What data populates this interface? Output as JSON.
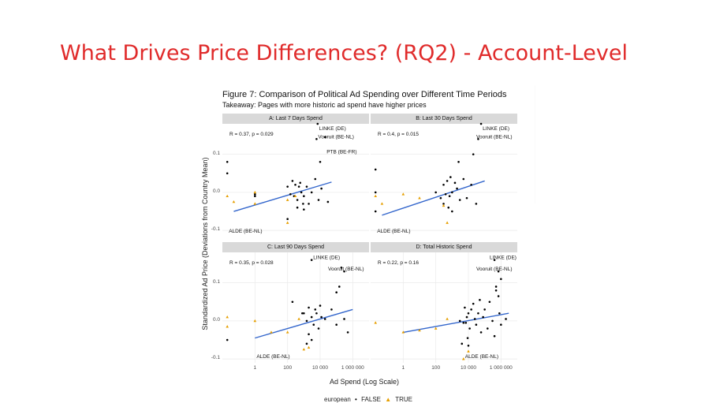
{
  "slide": {
    "title": "What Drives Price Differences? (RQ2) - Account-Level"
  },
  "figure": {
    "title": "Figure 7: Comparison of Political Ad Spending over Different Time Periods",
    "subtitle": "Takeaway: Pages with more historic ad spend have higher prices",
    "ylabel": "Standardized Ad Price (Deviations from Country Mean)",
    "xlabel": "Ad Spend (Log Scale)",
    "legend": {
      "title": "european",
      "false_label": "FALSE",
      "true_label": "TRUE"
    }
  },
  "colors": {
    "title_red": "#e02b2b",
    "false_points": "#000000",
    "true_points": "#e69f00",
    "fit_line": "#3366cc",
    "strip": "#d9d9d9",
    "grid": "#ececec"
  },
  "chart_data": [
    {
      "type": "scatter",
      "panel": "A",
      "title": "A: Last 7 Days Spend",
      "stat": "R = 0.37, p = 0.029",
      "x_scale": "log10",
      "xlim": [
        0.01,
        10000000
      ],
      "ylim": [
        -0.11,
        0.18
      ],
      "y_ticks": [
        -0.1,
        0.0,
        0.1
      ],
      "y_tick_labels": [
        "-0.1",
        "0.0",
        "0.1"
      ],
      "x_ticks": [],
      "x_tick_labels": [],
      "fit": [
        [
          0.05,
          -0.05
        ],
        [
          50000,
          0.027
        ]
      ],
      "series": [
        {
          "name": "FALSE",
          "points": [
            [
              0.02,
              0.08
            ],
            [
              0.02,
              0.05
            ],
            [
              1,
              -0.005
            ],
            [
              1,
              -0.01
            ],
            [
              200,
              0.03
            ],
            [
              300,
              0.02
            ],
            [
              500,
              0.015
            ],
            [
              150,
              -0.005
            ],
            [
              250,
              -0.01
            ],
            [
              400,
              -0.02
            ],
            [
              700,
              0.0
            ],
            [
              1000,
              -0.01
            ],
            [
              1500,
              0.015
            ],
            [
              2000,
              -0.03
            ],
            [
              5000,
              0.035
            ],
            [
              8000,
              -0.02
            ],
            [
              12000,
              0.01
            ],
            [
              30000,
              -0.025
            ],
            [
              600,
              0.025
            ],
            [
              100,
              0.015
            ],
            [
              900,
              -0.03
            ],
            [
              3000,
              0.0
            ],
            [
              400,
              -0.04
            ],
            [
              1000,
              -0.045
            ],
            [
              10000,
              0.08
            ],
            [
              100,
              -0.07
            ],
            [
              20000,
              0.145
            ],
            [
              7000,
              0.18
            ],
            [
              6000,
              0.14
            ]
          ]
        },
        {
          "name": "TRUE",
          "points": [
            [
              0.02,
              -0.01
            ],
            [
              0.05,
              -0.025
            ],
            [
              1,
              -0.03
            ],
            [
              1,
              0.0
            ],
            [
              100,
              -0.02
            ],
            [
              100,
              -0.08
            ],
            [
              300,
              -0.01
            ]
          ]
        }
      ],
      "labels": [
        {
          "text": "LINKE (DE)",
          "x": 7000,
          "y": 0.18
        },
        {
          "text": "Vooruit (BE-NL)",
          "x": 6000,
          "y": 0.14
        },
        {
          "text": "PTB (BE-FR)",
          "x": 20000,
          "y": 0.1
        },
        {
          "text": "ALDE (BE-NL)",
          "x": 0.02,
          "y": -0.11
        }
      ]
    },
    {
      "type": "scatter",
      "panel": "B",
      "title": "B: Last 30 Days Spend",
      "stat": "R = 0.4, p = 0.015",
      "x_scale": "log10",
      "xlim": [
        0.01,
        10000000
      ],
      "ylim": [
        -0.11,
        0.18
      ],
      "y_ticks": [
        -0.1,
        0.0,
        0.1
      ],
      "y_tick_labels": [
        "",
        "",
        ""
      ],
      "x_ticks": [],
      "x_tick_labels": [],
      "fit": [
        [
          0.05,
          -0.06
        ],
        [
          100000,
          0.03
        ]
      ],
      "series": [
        {
          "name": "FALSE",
          "points": [
            [
              0.02,
              0.06
            ],
            [
              0.02,
              0.0
            ],
            [
              0.02,
              -0.05
            ],
            [
              100,
              0.0
            ],
            [
              300,
              0.02
            ],
            [
              500,
              0.03
            ],
            [
              700,
              -0.01
            ],
            [
              1000,
              0.0
            ],
            [
              1500,
              0.025
            ],
            [
              2000,
              0.01
            ],
            [
              3000,
              -0.02
            ],
            [
              5000,
              0.035
            ],
            [
              8000,
              -0.015
            ],
            [
              15000,
              0.02
            ],
            [
              30000,
              -0.03
            ],
            [
              200,
              -0.015
            ],
            [
              400,
              -0.005
            ],
            [
              600,
              -0.04
            ],
            [
              1000,
              -0.05
            ],
            [
              2500,
              0.08
            ],
            [
              300,
              -0.03
            ],
            [
              800,
              0.04
            ],
            [
              60000,
              0.18
            ],
            [
              40000,
              0.14
            ],
            [
              20000,
              0.1
            ]
          ]
        },
        {
          "name": "TRUE",
          "points": [
            [
              0.02,
              -0.01
            ],
            [
              0.05,
              -0.03
            ],
            [
              1,
              -0.005
            ],
            [
              10,
              -0.015
            ],
            [
              300,
              -0.035
            ],
            [
              500,
              -0.08
            ]
          ]
        }
      ],
      "labels": [
        {
          "text": "LINKE (DE)",
          "x": 60000,
          "y": 0.18
        },
        {
          "text": "Vooruit (BE-NL)",
          "x": 40000,
          "y": 0.14
        },
        {
          "text": "ALDE (BE-NL)",
          "x": 0.02,
          "y": -0.11
        }
      ]
    },
    {
      "type": "scatter",
      "panel": "C",
      "title": "C: Last 90 Days Spend",
      "stat": "R = 0.35, p = 0.028",
      "x_scale": "log10",
      "xlim": [
        0.01,
        10000000
      ],
      "ylim": [
        -0.11,
        0.18
      ],
      "y_ticks": [
        -0.1,
        0.0,
        0.1
      ],
      "y_tick_labels": [
        "-0.1",
        "0.0",
        "0.1"
      ],
      "x_ticks": [
        1,
        100,
        10000,
        1000000
      ],
      "x_tick_labels": [
        "1",
        "100",
        "10 000",
        "1 000 000"
      ],
      "fit": [
        [
          1,
          -0.045
        ],
        [
          1000000,
          0.03
        ]
      ],
      "series": [
        {
          "name": "FALSE",
          "points": [
            [
              0.02,
              -0.05
            ],
            [
              200,
              0.05
            ],
            [
              1000,
              0.02
            ],
            [
              1500,
              0.0
            ],
            [
              2000,
              0.035
            ],
            [
              3000,
              0.01
            ],
            [
              4000,
              -0.01
            ],
            [
              5000,
              0.03
            ],
            [
              6000,
              0.02
            ],
            [
              8000,
              -0.02
            ],
            [
              12000,
              0.01
            ],
            [
              20000,
              0.005
            ],
            [
              50000,
              0.03
            ],
            [
              100000,
              -0.01
            ],
            [
              300000,
              0.005
            ],
            [
              500000,
              -0.03
            ],
            [
              2000,
              -0.035
            ],
            [
              3000,
              -0.05
            ],
            [
              1500,
              -0.06
            ],
            [
              800,
              0.02
            ],
            [
              10000,
              0.04
            ],
            [
              150000,
              0.09
            ],
            [
              100000,
              0.075
            ],
            [
              300000,
              0.13
            ],
            [
              200000,
              0.14
            ],
            [
              3000,
              0.16
            ]
          ]
        },
        {
          "name": "TRUE",
          "points": [
            [
              0.02,
              0.01
            ],
            [
              0.02,
              -0.015
            ],
            [
              1,
              0.0
            ],
            [
              10,
              -0.03
            ],
            [
              100,
              -0.03
            ],
            [
              500,
              0.005
            ],
            [
              1000,
              -0.075
            ],
            [
              2000,
              -0.07
            ]
          ]
        }
      ],
      "labels": [
        {
          "text": "LINKE (DE)",
          "x": 3000,
          "y": 0.16
        },
        {
          "text": "Vooruit (BE-NL)",
          "x": 200000,
          "y": 0.13
        },
        {
          "text": "ALDE (BE-NL)",
          "x": 1,
          "y": -0.1
        }
      ]
    },
    {
      "type": "scatter",
      "panel": "D",
      "title": "D: Total Historic Spend",
      "stat": "R = 0.22, p = 0.16",
      "x_scale": "log10",
      "xlim": [
        0.01,
        10000000
      ],
      "ylim": [
        -0.11,
        0.18
      ],
      "y_ticks": [
        -0.1,
        0.0,
        0.1
      ],
      "y_tick_labels": [
        "",
        "",
        ""
      ],
      "x_ticks": [
        1,
        100,
        10000,
        1000000
      ],
      "x_tick_labels": [
        "1",
        "100",
        "10 000",
        "1 000 000"
      ],
      "fit": [
        [
          1,
          -0.03
        ],
        [
          3000000,
          0.02
        ]
      ],
      "series": [
        {
          "name": "FALSE",
          "points": [
            [
              3000,
              0.0
            ],
            [
              5000,
              -0.005
            ],
            [
              8000,
              0.01
            ],
            [
              10000,
              0.02
            ],
            [
              12000,
              -0.02
            ],
            [
              15000,
              0.03
            ],
            [
              20000,
              0.045
            ],
            [
              25000,
              0.005
            ],
            [
              30000,
              -0.01
            ],
            [
              40000,
              0.02
            ],
            [
              50000,
              0.055
            ],
            [
              60000,
              -0.03
            ],
            [
              80000,
              0.01
            ],
            [
              100000,
              0.03
            ],
            [
              150000,
              -0.02
            ],
            [
              200000,
              0.05
            ],
            [
              300000,
              0.0
            ],
            [
              400000,
              -0.04
            ],
            [
              500000,
              0.08
            ],
            [
              800000,
              0.02
            ],
            [
              1000000,
              -0.01
            ],
            [
              2000000,
              0.005
            ],
            [
              6000,
              0.035
            ],
            [
              7000,
              -0.005
            ],
            [
              9000,
              -0.045
            ],
            [
              10000,
              -0.065
            ],
            [
              4000,
              -0.06
            ],
            [
              500000,
              0.09
            ],
            [
              700000,
              0.065
            ],
            [
              1000000,
              0.11
            ],
            [
              700000,
              0.13
            ],
            [
              400000,
              0.16
            ]
          ]
        },
        {
          "name": "TRUE",
          "points": [
            [
              0.02,
              -0.005
            ],
            [
              1,
              -0.03
            ],
            [
              10,
              -0.025
            ],
            [
              100,
              -0.02
            ],
            [
              500,
              0.005
            ],
            [
              10000,
              -0.08
            ],
            [
              5000,
              -0.1
            ]
          ]
        }
      ],
      "labels": [
        {
          "text": "LINKE (DE)",
          "x": 400000,
          "y": 0.16
        },
        {
          "text": "Vooruit (BE-NL)",
          "x": 700000,
          "y": 0.13
        },
        {
          "text": "ALDE (BE-NL)",
          "x": 5000,
          "y": -0.1
        }
      ]
    }
  ]
}
